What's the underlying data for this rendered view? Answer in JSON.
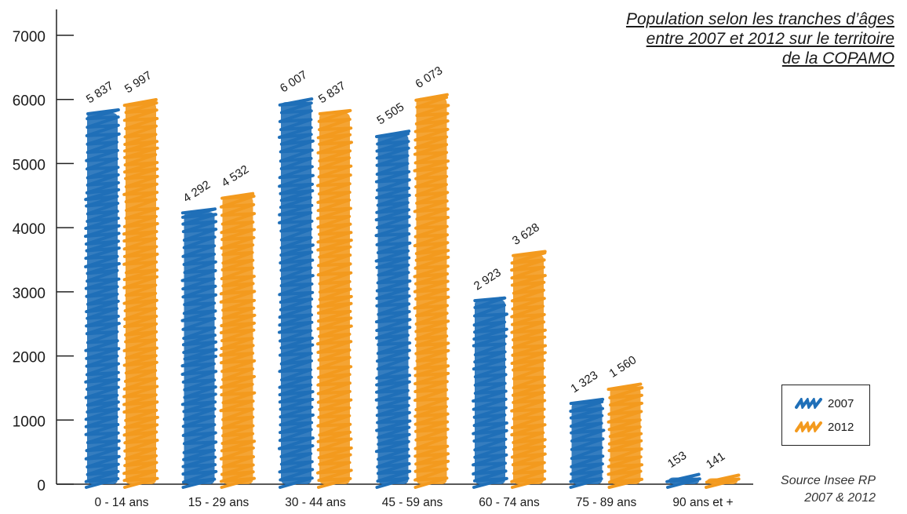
{
  "title_lines": [
    "Population selon les tranches d’âges",
    "entre 2007 et 2012 sur le territoire",
    "de la COPAMO"
  ],
  "source_lines": [
    "Source Insee RP",
    "2007 & 2012"
  ],
  "legend": [
    {
      "label": "2007",
      "color": "#1f6fb8"
    },
    {
      "label": "2012",
      "color": "#f39a1e"
    }
  ],
  "chart_data": {
    "type": "bar",
    "title": "Population selon les tranches d’âges entre 2007 et 2012 sur le territoire de la COPAMO",
    "categories": [
      "0 - 14 ans",
      "15 - 29 ans",
      "30 - 44 ans",
      "45 - 59 ans",
      "60 - 74 ans",
      "75 - 89 ans",
      "90 ans et +"
    ],
    "series": [
      {
        "name": "2007",
        "color": "#1f6fb8",
        "values": [
          5837,
          4292,
          6007,
          5505,
          2923,
          1323,
          153
        ],
        "labels": [
          "5 837",
          "4 292",
          "6 007",
          "5 505",
          "2 923",
          "1 323",
          "153"
        ]
      },
      {
        "name": "2012",
        "color": "#f39a1e",
        "values": [
          5997,
          4532,
          5837,
          6073,
          3628,
          1560,
          141
        ],
        "labels": [
          "5 997",
          "4 532",
          "5 837",
          "6 073",
          "3 628",
          "1 560",
          "141"
        ]
      }
    ],
    "yticks": [
      "0",
      "1000",
      "2000",
      "3000",
      "4000",
      "5000",
      "6000",
      "7000"
    ],
    "ylim": [
      0,
      7000
    ],
    "xlabel": "",
    "ylabel": "",
    "grid": false,
    "legend_position": "bottom-right"
  }
}
